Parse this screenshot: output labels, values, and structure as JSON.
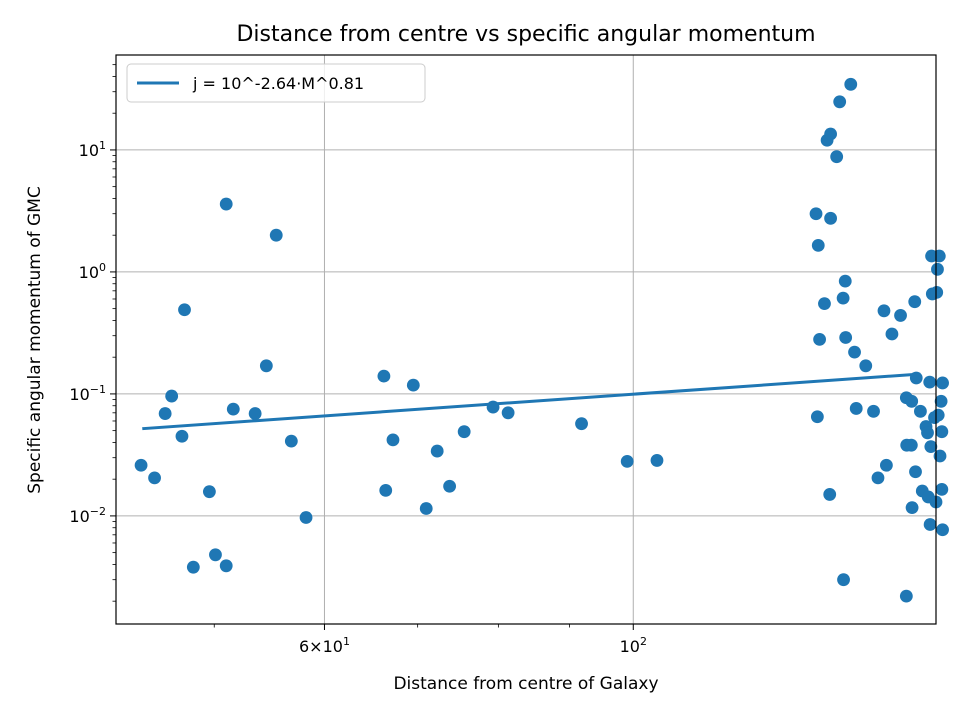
{
  "chart_data": {
    "type": "scatter",
    "title": "Distance from centre vs specific angular momentum",
    "xlabel": "Distance from centre of Galaxy",
    "ylabel": "Specific angular momentum of GMC",
    "xscale": "log",
    "yscale": "log",
    "xlim": [
      42.5,
      165
    ],
    "ylim": [
      0.0013,
      60
    ],
    "grid": true,
    "legend": {
      "placement": "top-left",
      "entries": [
        "j = 10^-2.64·M^0.81"
      ]
    },
    "colors": {
      "series": "#1f77b4",
      "grid": "#b0b0b0"
    },
    "x_major_ticks": [
      {
        "value": 60,
        "base": "6×10",
        "exp": "1"
      },
      {
        "value": 100,
        "base": "10",
        "exp": "2"
      }
    ],
    "y_major_ticks": [
      {
        "value": 0.01,
        "base": "10",
        "exp": "−2"
      },
      {
        "value": 0.1,
        "base": "10",
        "exp": "−1"
      },
      {
        "value": 1,
        "base": "10",
        "exp": "0"
      },
      {
        "value": 10,
        "base": "10",
        "exp": "1"
      }
    ],
    "fit_line": {
      "name": "j = 10^-2.64·M^0.81",
      "x": [
        44.5,
        160
      ],
      "y": [
        0.052,
        0.145
      ]
    },
    "points": [
      [
        44.3,
        0.026
      ],
      [
        45.3,
        0.0205
      ],
      [
        46.1,
        0.069
      ],
      [
        46.6,
        0.096
      ],
      [
        47.4,
        0.045
      ],
      [
        47.6,
        0.49
      ],
      [
        48.3,
        0.0038
      ],
      [
        49.6,
        0.0158
      ],
      [
        50.1,
        0.0048
      ],
      [
        51.0,
        3.6
      ],
      [
        51.0,
        0.0039
      ],
      [
        51.6,
        0.075
      ],
      [
        53.5,
        0.069
      ],
      [
        54.5,
        0.17
      ],
      [
        55.4,
        2.0
      ],
      [
        56.8,
        0.041
      ],
      [
        58.2,
        0.0097
      ],
      [
        66.2,
        0.14
      ],
      [
        66.4,
        0.0162
      ],
      [
        67.2,
        0.042
      ],
      [
        69.5,
        0.118
      ],
      [
        71.0,
        0.0115
      ],
      [
        72.3,
        0.034
      ],
      [
        73.8,
        0.0175
      ],
      [
        75.6,
        0.049
      ],
      [
        79.3,
        0.078
      ],
      [
        81.3,
        0.07
      ],
      [
        91.8,
        0.057
      ],
      [
        99.0,
        0.028
      ],
      [
        104.0,
        0.0285
      ],
      [
        135.3,
        3.0
      ],
      [
        135.8,
        1.65
      ],
      [
        136.1,
        0.28
      ],
      [
        135.6,
        0.065
      ],
      [
        137.2,
        0.55
      ],
      [
        137.8,
        12.0
      ],
      [
        138.6,
        13.5
      ],
      [
        138.6,
        2.75
      ],
      [
        138.4,
        0.015
      ],
      [
        140.0,
        8.8
      ],
      [
        140.7,
        24.8
      ],
      [
        141.5,
        0.61
      ],
      [
        142.0,
        0.84
      ],
      [
        142.1,
        0.29
      ],
      [
        141.6,
        0.003
      ],
      [
        143.3,
        34.5
      ],
      [
        144.2,
        0.22
      ],
      [
        144.6,
        0.076
      ],
      [
        146.9,
        0.17
      ],
      [
        148.8,
        0.072
      ],
      [
        149.9,
        0.0205
      ],
      [
        151.4,
        0.48
      ],
      [
        152.0,
        0.026
      ],
      [
        153.4,
        0.31
      ],
      [
        155.6,
        0.44
      ],
      [
        157.1,
        0.093
      ],
      [
        157.2,
        0.038
      ],
      [
        157.1,
        0.0022
      ],
      [
        158.5,
        0.087
      ],
      [
        158.4,
        0.038
      ],
      [
        158.6,
        0.0117
      ],
      [
        159.3,
        0.57
      ],
      [
        159.7,
        0.135
      ],
      [
        159.5,
        0.023
      ],
      [
        160.8,
        0.072
      ],
      [
        161.3,
        0.016
      ],
      [
        162.3,
        0.054
      ],
      [
        162.7,
        0.048
      ],
      [
        162.9,
        0.0143
      ],
      [
        163.3,
        0.125
      ],
      [
        163.6,
        0.037
      ],
      [
        163.4,
        0.0085
      ],
      [
        163.8,
        1.35
      ],
      [
        164.0,
        0.66
      ],
      [
        164.6,
        0.064
      ],
      [
        165.0,
        0.013
      ],
      [
        165.2,
        0.68
      ],
      [
        165.4,
        1.05
      ],
      [
        165.6,
        0.067
      ],
      [
        165.9,
        1.35
      ],
      [
        166.1,
        0.031
      ],
      [
        166.4,
        0.087
      ],
      [
        166.6,
        0.049
      ],
      [
        166.6,
        0.0165
      ],
      [
        166.8,
        0.123
      ],
      [
        166.8,
        0.0077
      ]
    ]
  }
}
